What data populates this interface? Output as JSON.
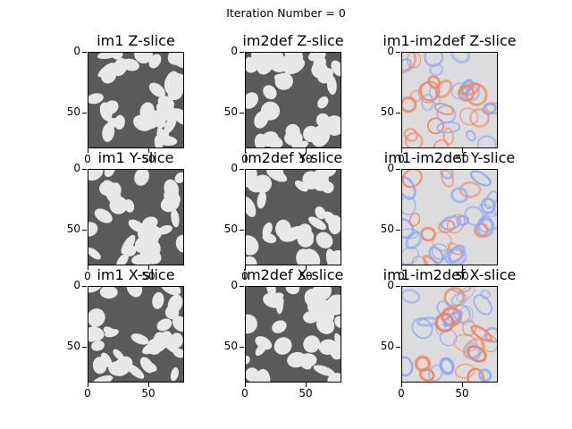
{
  "figure": {
    "suptitle": "Iteration Number = 0",
    "x_tick_labels": [
      "0",
      "50"
    ],
    "y_tick_labels": [
      "0",
      "50"
    ]
  },
  "panels": [
    {
      "id": "im1-z",
      "title": "im1 Z-slice",
      "kind": "gray",
      "seed": 11
    },
    {
      "id": "im2def-z",
      "title": "im2def Z-slice",
      "kind": "gray",
      "seed": 12
    },
    {
      "id": "diff-z",
      "title": "im1-im2def Z-slice",
      "kind": "diff",
      "seed": 13
    },
    {
      "id": "im1-y",
      "title": "im1 Y-slice",
      "kind": "gray",
      "seed": 21
    },
    {
      "id": "im2def-y",
      "title": "im2def Y-slice",
      "kind": "gray",
      "seed": 22
    },
    {
      "id": "diff-y",
      "title": "im1-im2def Y-slice",
      "kind": "diff",
      "seed": 23
    },
    {
      "id": "im1-x",
      "title": "im1 X-slice",
      "kind": "gray",
      "seed": 31
    },
    {
      "id": "im2def-x",
      "title": "im2def X-slice",
      "kind": "gray",
      "seed": 32
    },
    {
      "id": "diff-x",
      "title": "im1-im2def X-slice",
      "kind": "diff",
      "seed": 33
    }
  ],
  "colors": {
    "gray_background": "#5a5a5a",
    "gray_grain": "#e8e8e8",
    "diff_background": "#dcdcdc",
    "diff_positive": "#f4845f",
    "diff_negative": "#8fa9f5"
  }
}
